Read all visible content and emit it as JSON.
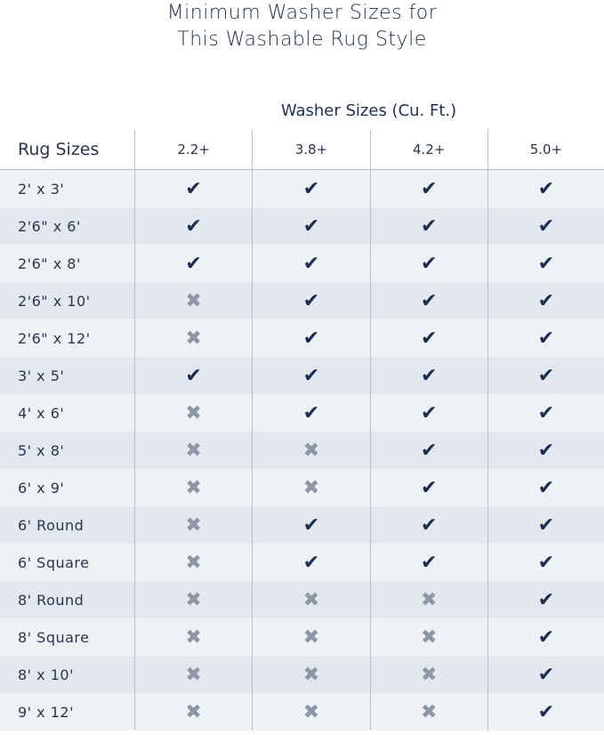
{
  "title": [
    "Minimum Washer Sizes for",
    "This Washable Rug Style"
  ],
  "washer_header": "Washer Sizes (Cu. Ft.)",
  "row_header": "Rug Sizes",
  "columns": [
    "2.2+",
    "3.8+",
    "4.2+",
    "5.0+"
  ],
  "colors": {
    "check": "#1b2c4f",
    "cross": "#8d96a4"
  },
  "symbols": {
    "yes": "✔",
    "no": "✖"
  },
  "rows": [
    {
      "size": "2' x 3'",
      "fits": [
        true,
        true,
        true,
        true
      ]
    },
    {
      "size": "2'6\" x 6'",
      "fits": [
        true,
        true,
        true,
        true
      ]
    },
    {
      "size": "2'6\" x 8'",
      "fits": [
        true,
        true,
        true,
        true
      ]
    },
    {
      "size": "2'6\" x 10'",
      "fits": [
        false,
        true,
        true,
        true
      ]
    },
    {
      "size": "2'6\" x 12'",
      "fits": [
        false,
        true,
        true,
        true
      ]
    },
    {
      "size": "3' x 5'",
      "fits": [
        true,
        true,
        true,
        true
      ]
    },
    {
      "size": "4' x 6'",
      "fits": [
        false,
        true,
        true,
        true
      ]
    },
    {
      "size": "5' x 8'",
      "fits": [
        false,
        false,
        true,
        true
      ]
    },
    {
      "size": "6' x 9'",
      "fits": [
        false,
        false,
        true,
        true
      ]
    },
    {
      "size": "6' Round",
      "fits": [
        false,
        true,
        true,
        true
      ]
    },
    {
      "size": "6' Square",
      "fits": [
        false,
        true,
        true,
        true
      ]
    },
    {
      "size": "8' Round",
      "fits": [
        false,
        false,
        false,
        true
      ]
    },
    {
      "size": "8' Square",
      "fits": [
        false,
        false,
        false,
        true
      ]
    },
    {
      "size": "8' x 10'",
      "fits": [
        false,
        false,
        false,
        true
      ]
    },
    {
      "size": "9' x 12'",
      "fits": [
        false,
        false,
        false,
        true
      ]
    }
  ]
}
